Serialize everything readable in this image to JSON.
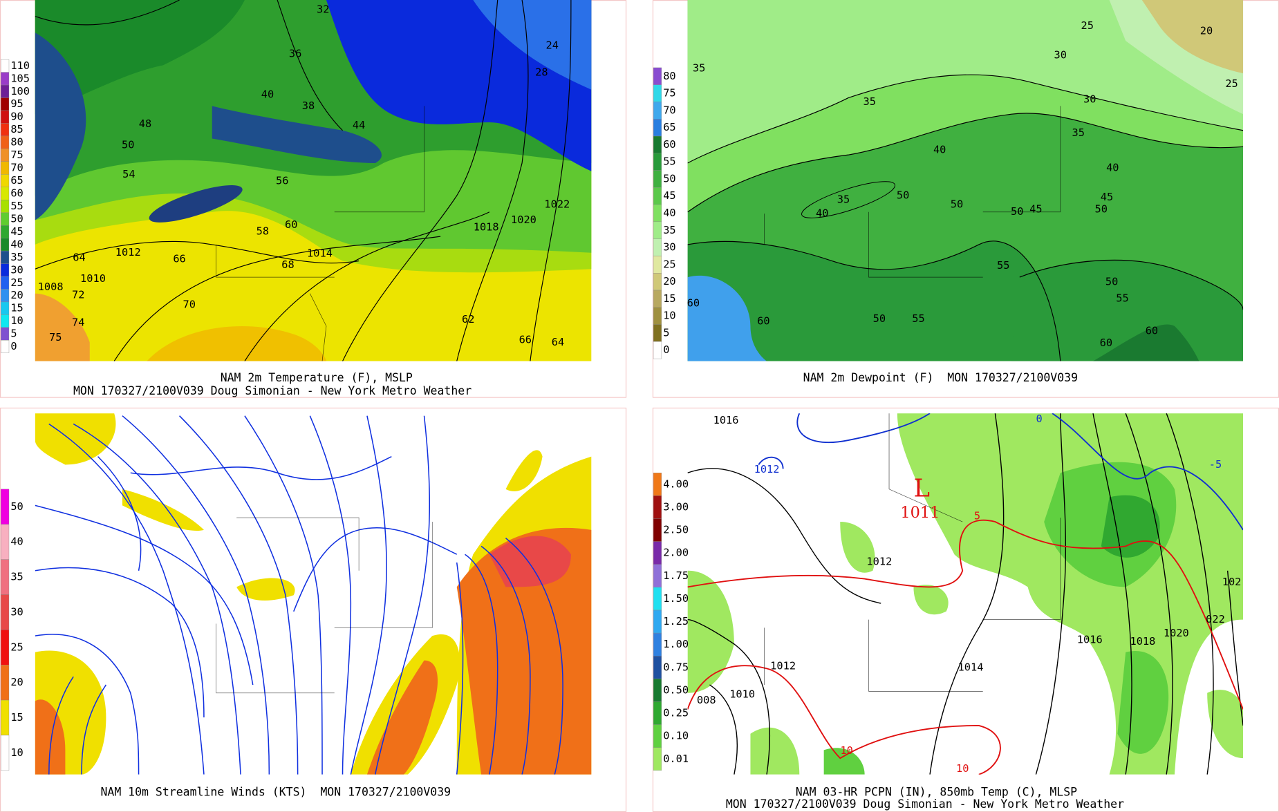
{
  "panels": [
    {
      "caption": [
        "NAM 2m Temperature (F), MSLP",
        "MON 170327/2100V039 Doug Simonian - New York Metro Weather"
      ],
      "colorbar": {
        "labels": [
          "110",
          "105",
          "100",
          "95",
          "90",
          "85",
          "80",
          "75",
          "70",
          "65",
          "60",
          "55",
          "50",
          "45",
          "40",
          "35",
          "30",
          "25",
          "20",
          "15",
          "10",
          "5",
          "0"
        ],
        "colors": [
          "#ffffff",
          "#9a3cc8",
          "#6e1e96",
          "#a00000",
          "#d01010",
          "#f03010",
          "#f06018",
          "#f09028",
          "#f0b800",
          "#f0d800",
          "#d8e800",
          "#a8e000",
          "#60cc30",
          "#30a830",
          "#1a8a2a",
          "#1e4e8c",
          "#0a2adc",
          "#2060f0",
          "#3090f0",
          "#18c8f0",
          "#10e8f0",
          "#8050d0",
          "#ffffff"
        ]
      },
      "map_labels": [
        "32",
        "36",
        "38",
        "40",
        "44",
        "48",
        "50",
        "54",
        "56",
        "58",
        "60",
        "64",
        "66",
        "68",
        "70",
        "72",
        "74",
        "75",
        "1008",
        "1010",
        "1012",
        "1014",
        "1018",
        "1020",
        "1022",
        "28",
        "24",
        "62",
        "66",
        "64"
      ]
    },
    {
      "caption": [
        "NAM 2m Dewpoint (F)  MON 170327/2100V039"
      ],
      "colorbar": {
        "labels": [
          "80",
          "75",
          "70",
          "65",
          "60",
          "55",
          "50",
          "45",
          "40",
          "35",
          "30",
          "25",
          "20",
          "15",
          "10",
          "5",
          "0"
        ],
        "colors": [
          "#8a4cd0",
          "#30d8e8",
          "#40a8ec",
          "#2a7ee0",
          "#1a7a30",
          "#2a9a3a",
          "#40b040",
          "#5cc84a",
          "#80e060",
          "#a0ec88",
          "#c0f0b0",
          "#e0e8a0",
          "#d0c878",
          "#b8a860",
          "#a09040",
          "#807020",
          "#ffffff"
        ]
      },
      "map_labels": [
        "35",
        "35",
        "40",
        "35",
        "30",
        "25",
        "20",
        "25",
        "30",
        "40",
        "45",
        "50",
        "35",
        "40",
        "50",
        "50",
        "50",
        "45",
        "55",
        "50",
        "55",
        "50",
        "55",
        "60",
        "60",
        "60",
        "60"
      ]
    },
    {
      "caption": [
        "NAM 10m Streamline Winds (KTS)  MON 170327/2100V039"
      ],
      "colorbar": {
        "labels": [
          "50",
          "40",
          "35",
          "30",
          "25",
          "20",
          "15",
          "10"
        ],
        "colors": [
          "#f000e0",
          "#f8b0c0",
          "#f07080",
          "#e84848",
          "#f01010",
          "#f07018",
          "#f0e000",
          "#ffffff"
        ]
      },
      "map_labels": []
    },
    {
      "caption": [
        "NAM 03-HR PCPN (IN), 850mb Temp (C), MLSP",
        "MON 170327/2100V039 Doug Simonian - New York Metro Weather"
      ],
      "colorbar": {
        "labels": [
          "4.00",
          "3.00",
          "2.50",
          "2.00",
          "1.75",
          "1.50",
          "1.25",
          "1.00",
          "0.75",
          "0.50",
          "0.25",
          "0.10",
          "0.01"
        ],
        "colors": [
          "#f07818",
          "#a01010",
          "#800000",
          "#7a2aa8",
          "#9070d8",
          "#20e0f0",
          "#30a8f0",
          "#3080e0",
          "#2050a0",
          "#1a7a30",
          "#30a830",
          "#60d040",
          "#a0e860"
        ]
      },
      "map_labels": [
        "1016",
        "1012",
        "L",
        "1011",
        "5",
        "1012",
        "1012",
        "1010",
        "008",
        "1014",
        "1016",
        "1018",
        "1020",
        "022",
        "102",
        "0",
        "-5",
        "10",
        "10"
      ]
    }
  ]
}
